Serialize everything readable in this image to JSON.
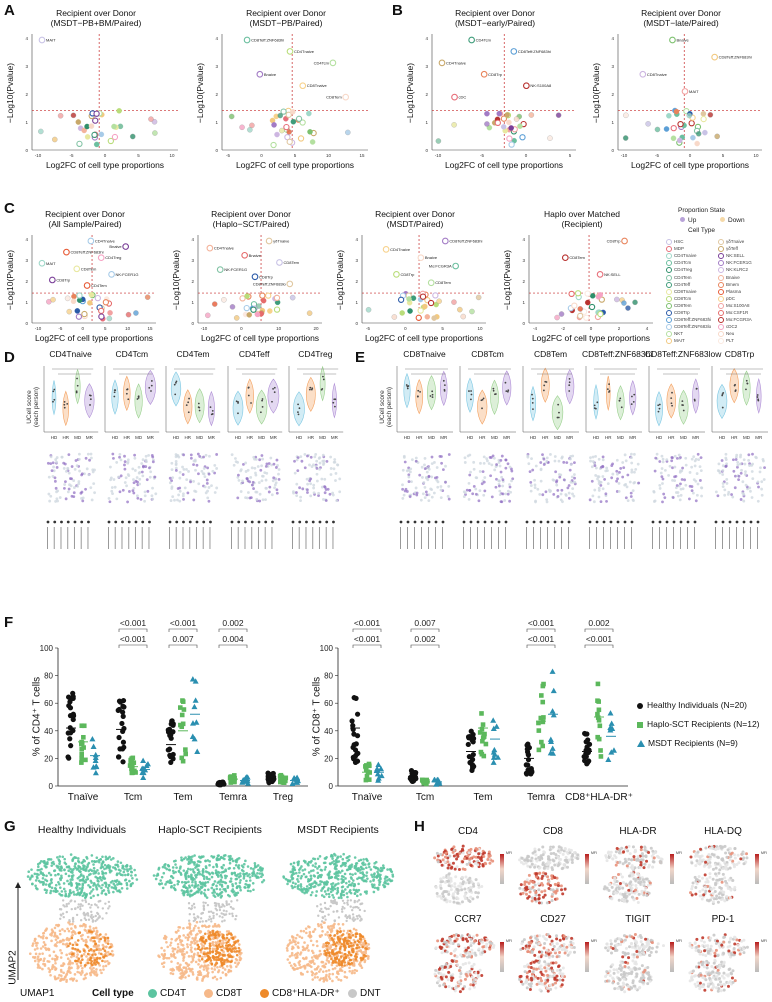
{
  "letters": {
    "A": "A",
    "B": "B",
    "C": "C",
    "D": "D",
    "E": "E",
    "F": "F",
    "G": "G",
    "H": "H"
  },
  "volcano": {
    "ylabel": "−Log10(Pvalue)",
    "xlabel": "Log2FC of cell type proportions",
    "A1": {
      "title": "Recipient over Donor\n(MSDT−PB+BM/Paired)",
      "labels": [
        "MAIT"
      ]
    },
    "A2": {
      "title": "Recipient over Donor\n(MSDT−PB/Paired)",
      "labels": [
        "CD8Teff:ZNF683hi",
        "CD4Tnaive",
        "CD4Tcm",
        "Bnaive",
        "CD8Tnaive",
        "CD8Tem"
      ]
    },
    "B1": {
      "title": "Recipient over Donor\n(MSDT−early/Paired)",
      "labels": [
        "CD4Tcm",
        "CD8Teff:ZNF683hi",
        "CD4Tnaive",
        "CD8Trp",
        "NK:S100A8",
        "cDC"
      ]
    },
    "B2": {
      "title": "Recipient over Donor\n(MSDT−late/Paired)",
      "labels": [
        "Bnaive",
        "CD8Teff:ZNF683hi",
        "CD8Tnaive",
        "MAIT"
      ]
    },
    "C1": {
      "title": "Recipient over Donor\n(All Sample/Paired)",
      "labels": [
        "CD4Tnaive",
        "Bnaive",
        "CD8Teff:ZNF683hi",
        "CD4Treg",
        "MAIT",
        "CD8Tem",
        "NK:FCER1G",
        "CD8Trp",
        "CD4Tem"
      ]
    },
    "C2": {
      "title": "Recipient over Donor\n(Haplo−SCT/Paired)",
      "labels": [
        "γδTnaive",
        "CD4Tnaive",
        "Bnaive",
        "CD8Tem",
        "NK:FCER1G",
        "CD8Trp",
        "CD8Teff:ZNF683lo"
      ]
    },
    "C3": {
      "title": "Recipient over Donor\n(MSDT/Paired)",
      "labels": [
        "CD8Teff:ZNF683hi",
        "CD4Tnaive",
        "Bnaive",
        "Mo:FCGR3A",
        "CD8Trp",
        "CD8Tem"
      ]
    },
    "C4": {
      "title": "Haplo over Matched\n(Recipient)",
      "labels": [
        "CD8Trp",
        "CD8Tem",
        "NK:SELL"
      ]
    },
    "yticks": [
      "0",
      "1",
      "2",
      "3",
      "4"
    ],
    "xticksA1": [
      "-10",
      "-5",
      "0",
      "5",
      "10"
    ],
    "xticksA2": [
      "-5",
      "0",
      "5",
      "10",
      "15"
    ]
  },
  "legendC": {
    "state_title": "Proportion State",
    "up": "Up",
    "down": "Down",
    "ct_title": "Cell Type",
    "col1": [
      "HSC",
      "MDP",
      "CD4Tnaive",
      "CD4Tcm",
      "CD4Treg",
      "CD4Tem",
      "CD4Teff",
      "CD8Tnaive",
      "CD8Tcm",
      "CD8Tem",
      "CD8Trp",
      "CD8Teff:ZNF683hi",
      "CD8Teff:ZNF683lo",
      "NKT",
      "MAIT"
    ],
    "col2": [
      "γδTnaive",
      "γδTeff",
      "NK:SELL",
      "NK:FCER1G",
      "NK:KLRC2",
      "Bnaive",
      "Bmem",
      "Plasma",
      "pDC",
      "Mo:S100A8",
      "Mo:CSF1R",
      "Mo:FCGR3A",
      "cDC2",
      "Neu",
      "PLT"
    ],
    "col1_colors": [
      "#c9c3e6",
      "#e76f7a",
      "#9fd8c9",
      "#6bbf9f",
      "#2f8f6b",
      "#82c3a5",
      "#3e9c7a",
      "#e8e8a0",
      "#b9dd7a",
      "#7cc06e",
      "#2a5aa8",
      "#5c9fd6",
      "#a7cbe8",
      "#b4e0a0",
      "#f2c980"
    ],
    "col2_colors": [
      "#e0c7a0",
      "#c8a86a",
      "#7a3f98",
      "#a27bc5",
      "#cdb6e1",
      "#f4b39b",
      "#e8845c",
      "#e75b37",
      "#f7d28c",
      "#f2a1a1",
      "#e56b6b",
      "#b8322f",
      "#f6a3c4",
      "#f8d9c9",
      "#fbe9e0"
    ]
  },
  "panelD": {
    "ylabel": "UCell score\n(each person)",
    "subsets": [
      "CD4Tnaive",
      "CD4Tcm",
      "CD4Tem",
      "CD4Teff",
      "CD4Treg"
    ],
    "groups": [
      "HD",
      "HR",
      "MD",
      "MR"
    ]
  },
  "panelE": {
    "ylabel": "UCell score\n(each person)",
    "subsets": [
      "CD8Tnaive",
      "CD8Tcm",
      "CD8Tem",
      "CD8Teff:ZNF683hi",
      "CD8Teff:ZNF683low",
      "CD8Trp"
    ],
    "groups": [
      "HD",
      "HR",
      "MD",
      "MR"
    ]
  },
  "panelF": {
    "left": {
      "ylabel": "% of CD4⁺ T cells",
      "categories": [
        "Tnaïve",
        "Tcm",
        "Tem",
        "Temra",
        "Treg"
      ],
      "yticks": [
        "0",
        "20",
        "40",
        "60",
        "80",
        "100"
      ],
      "pvals": [
        {
          "cat": 1,
          "text": "<0.001",
          "row": 0
        },
        {
          "cat": 1,
          "text": "<0.001",
          "row": 1
        },
        {
          "cat": 2,
          "text": "<0.001",
          "row": 0
        },
        {
          "cat": 2,
          "text": "0.007",
          "row": 1
        },
        {
          "cat": 3,
          "text": "0.002",
          "row": 0
        },
        {
          "cat": 3,
          "text": "0.004",
          "row": 1
        }
      ]
    },
    "right": {
      "ylabel": "% of CD8⁺ T cells",
      "categories": [
        "Tnaïve",
        "Tcm",
        "Tem",
        "Temra",
        "CD8⁺HLA-DR⁺"
      ],
      "yticks": [
        "0",
        "20",
        "40",
        "60",
        "80",
        "100"
      ],
      "pvals": [
        {
          "cat": 0,
          "text": "<0.001",
          "row": 0
        },
        {
          "cat": 0,
          "text": "<0.001",
          "row": 1
        },
        {
          "cat": 1,
          "text": "0.007",
          "row": 0
        },
        {
          "cat": 1,
          "text": "0.002",
          "row": 1
        },
        {
          "cat": 3,
          "text": "<0.001",
          "row": 0
        },
        {
          "cat": 3,
          "text": "<0.001",
          "row": 1
        },
        {
          "cat": 4,
          "text": "0.002",
          "row": 0
        },
        {
          "cat": 4,
          "text": "<0.001",
          "row": 1
        }
      ]
    },
    "legend": [
      {
        "label": "Healthy Individuals (N=20)",
        "color": "#111111",
        "shape": "circle"
      },
      {
        "label": "Haplo-SCT Recipients (N=12)",
        "color": "#5cb85c",
        "shape": "square"
      },
      {
        "label": "MSDT Recipients (N=9)",
        "color": "#2a8fb0",
        "shape": "triangle"
      }
    ],
    "chart_data": [
      {
        "type": "scatter",
        "title": "% of CD4+ T cells",
        "categories": [
          "Tnaïve",
          "Tcm",
          "Tem",
          "Temra",
          "Treg"
        ],
        "ylim": [
          0,
          100
        ],
        "series": [
          {
            "name": "Healthy Individuals (N=20)",
            "medians": [
              42,
              41,
              30,
              2,
              6
            ]
          },
          {
            "name": "Haplo-SCT Recipients (N=12)",
            "medians": [
              32,
              14,
              40,
              5,
              5
            ]
          },
          {
            "name": "MSDT Recipients (N=9)",
            "medians": [
              22,
              12,
              52,
              4,
              4
            ]
          }
        ]
      },
      {
        "type": "scatter",
        "title": "% of CD8+ T cells",
        "categories": [
          "Tnaïve",
          "Tcm",
          "Tem",
          "Temra",
          "CD8⁺HLA-DR⁺"
        ],
        "ylim": [
          0,
          100
        ],
        "series": [
          {
            "name": "Healthy Individuals (N=20)",
            "medians": [
              42,
              7,
              25,
              20,
              25
            ]
          },
          {
            "name": "Haplo-SCT Recipients (N=12)",
            "medians": [
              10,
              3,
              42,
              47,
              50
            ]
          },
          {
            "name": "MSDT Recipients (N=9)",
            "medians": [
              10,
              3,
              34,
              52,
              36
            ]
          }
        ]
      }
    ]
  },
  "panelG": {
    "titles": [
      "Healthy Individuals",
      "Haplo-SCT Recipients",
      "MSDT Recipients"
    ],
    "ylabel": "UMAP2",
    "xlabel": "UMAP1",
    "legend_title": "Cell type",
    "legend": [
      {
        "label": "CD4T",
        "color": "#5cc4a0"
      },
      {
        "label": "CD8T",
        "color": "#f6b98a"
      },
      {
        "label": "CD8⁺HLA-DR⁺",
        "color": "#ee8a2a"
      },
      {
        "label": "DNT",
        "color": "#c8c8c8"
      }
    ]
  },
  "panelH": {
    "markers": [
      "CD4",
      "CD8",
      "HLA-DR",
      "HLA-DQ",
      "CCR7",
      "CD27",
      "TIGIT",
      "PD-1"
    ],
    "scale_label": "MFI"
  }
}
